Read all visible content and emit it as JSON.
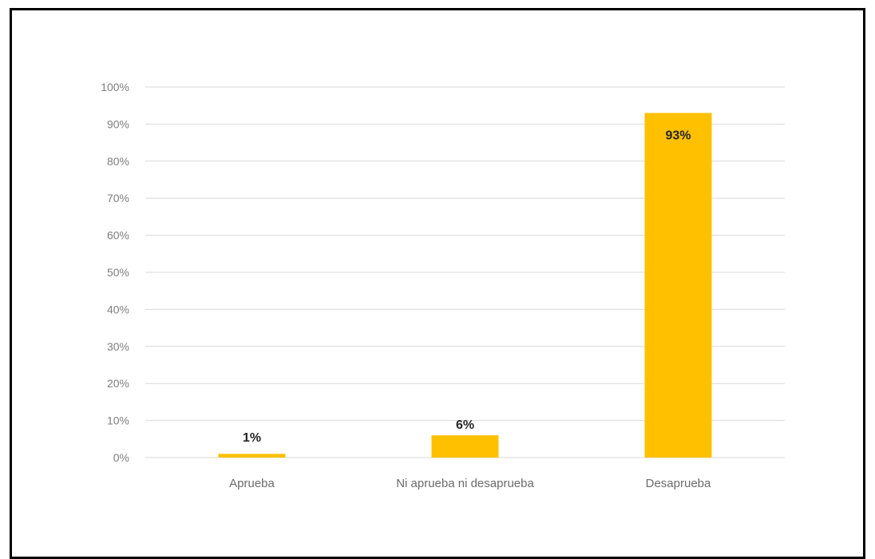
{
  "chart_data": {
    "type": "bar",
    "categories": [
      "Aprueba",
      "Ni aprueba ni desaprueba",
      "Desaprueba"
    ],
    "values": [
      1,
      6,
      93
    ],
    "data_labels": [
      "1%",
      "6%",
      "93%"
    ],
    "title": "",
    "xlabel": "",
    "ylabel": "",
    "ylim": [
      0,
      100
    ],
    "yticks": [
      "0%",
      "10%",
      "20%",
      "30%",
      "40%",
      "50%",
      "60%",
      "70%",
      "80%",
      "90%",
      "100%"
    ],
    "grid": true,
    "legend": "none",
    "bar_color": "#FFC000"
  }
}
